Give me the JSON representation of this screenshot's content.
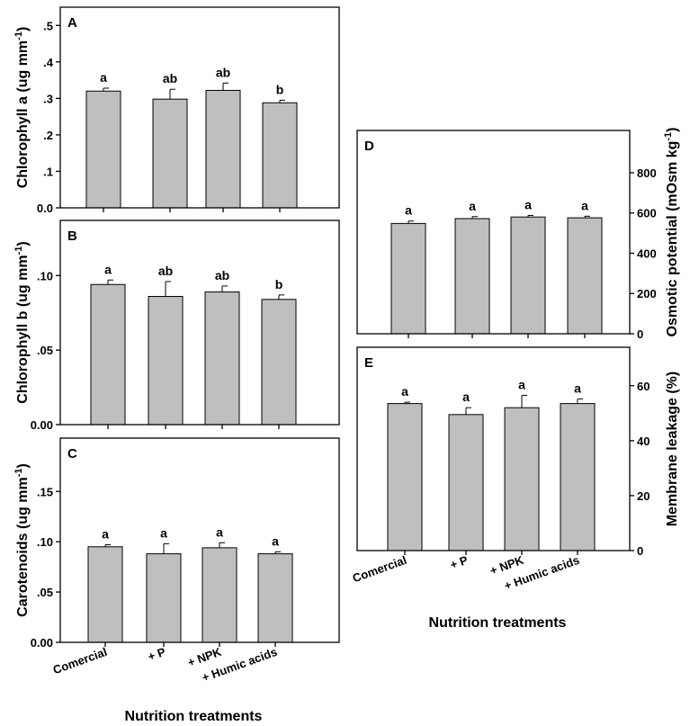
{
  "figure": {
    "left_xlabel": "Nutrition treatments",
    "right_xlabel": "Nutrition treatments"
  },
  "chart_data": [
    {
      "id": "A",
      "panel_label": "A",
      "type": "bar",
      "ylabel": "Chlorophyll a (ug mm",
      "ylabel_sup": "-1",
      "ylabel_end": ")",
      "categories": [
        "Comercial",
        "+ P",
        "+ NPK",
        "+ Humic acids"
      ],
      "values": [
        0.32,
        0.298,
        0.322,
        0.288
      ],
      "errors": [
        0.008,
        0.027,
        0.02,
        0.007
      ],
      "letters": [
        "a",
        "ab",
        "ab",
        "b"
      ],
      "ylim": [
        0,
        0.55
      ],
      "yticks": [
        0.0,
        0.1,
        0.2,
        0.3,
        0.4,
        0.5
      ],
      "ytick_labels": [
        "0.0",
        ".1",
        ".2",
        ".3",
        ".4",
        ".5"
      ],
      "axis_side": "left",
      "show_xticklabels": false
    },
    {
      "id": "B",
      "panel_label": "B",
      "type": "bar",
      "ylabel": "Chlorophyll b (ug mm",
      "ylabel_sup": "-1",
      "ylabel_end": ")",
      "categories": [
        "Comercial",
        "+ P",
        "+ NPK",
        "+ Humic acids"
      ],
      "values": [
        0.094,
        0.086,
        0.089,
        0.084
      ],
      "errors": [
        0.003,
        0.01,
        0.004,
        0.003
      ],
      "letters": [
        "a",
        "ab",
        "ab",
        "b"
      ],
      "ylim": [
        0,
        0.137
      ],
      "yticks": [
        0.0,
        0.05,
        0.1
      ],
      "ytick_labels": [
        "0.00",
        ".05",
        ".10"
      ],
      "axis_side": "left",
      "show_xticklabels": false
    },
    {
      "id": "C",
      "panel_label": "C",
      "type": "bar",
      "ylabel": "Carotenoids (ug mm",
      "ylabel_sup": "-1",
      "ylabel_end": ")",
      "categories": [
        "Comercial",
        "+ P",
        "+ NPK",
        "+ Humic acids"
      ],
      "values": [
        0.095,
        0.088,
        0.094,
        0.088
      ],
      "errors": [
        0.002,
        0.01,
        0.005,
        0.002
      ],
      "letters": [
        "a",
        "a",
        "a",
        "a"
      ],
      "ylim": [
        0,
        0.203
      ],
      "yticks": [
        0.0,
        0.05,
        0.1,
        0.15
      ],
      "ytick_labels": [
        "0.00",
        ".05",
        ".10",
        ".15"
      ],
      "axis_side": "left",
      "show_xticklabels": true
    },
    {
      "id": "D",
      "panel_label": "D",
      "type": "bar",
      "ylabel": "Osmotic potential (mOsm kg",
      "ylabel_sup": "-1",
      "ylabel_end": ")",
      "categories": [
        "Comercial",
        "+ P",
        "+ NPK",
        "+ Humic acids"
      ],
      "values": [
        548,
        572,
        580,
        576
      ],
      "errors": [
        12,
        10,
        8,
        8
      ],
      "letters": [
        "a",
        "a",
        "a",
        "a"
      ],
      "ylim": [
        0,
        1010
      ],
      "yticks": [
        0,
        200,
        400,
        600,
        800
      ],
      "ytick_labels": [
        "0",
        "200",
        "400",
        "600",
        "800"
      ],
      "axis_side": "right",
      "show_xticklabels": false
    },
    {
      "id": "E",
      "panel_label": "E",
      "type": "bar",
      "ylabel": "Membrane leakage (%)",
      "ylabel_sup": "",
      "ylabel_end": "",
      "categories": [
        "Comercial",
        "+ P",
        "+ NPK",
        "+ Humic acids"
      ],
      "values": [
        53.5,
        49.5,
        52,
        53.5
      ],
      "errors": [
        0.5,
        2.5,
        4.5,
        1.7
      ],
      "letters": [
        "a",
        "a",
        "a",
        "a"
      ],
      "ylim": [
        0,
        74
      ],
      "yticks": [
        0,
        20,
        40,
        60
      ],
      "ytick_labels": [
        "0",
        "20",
        "40",
        "60"
      ],
      "axis_side": "right",
      "show_xticklabels": true
    }
  ]
}
